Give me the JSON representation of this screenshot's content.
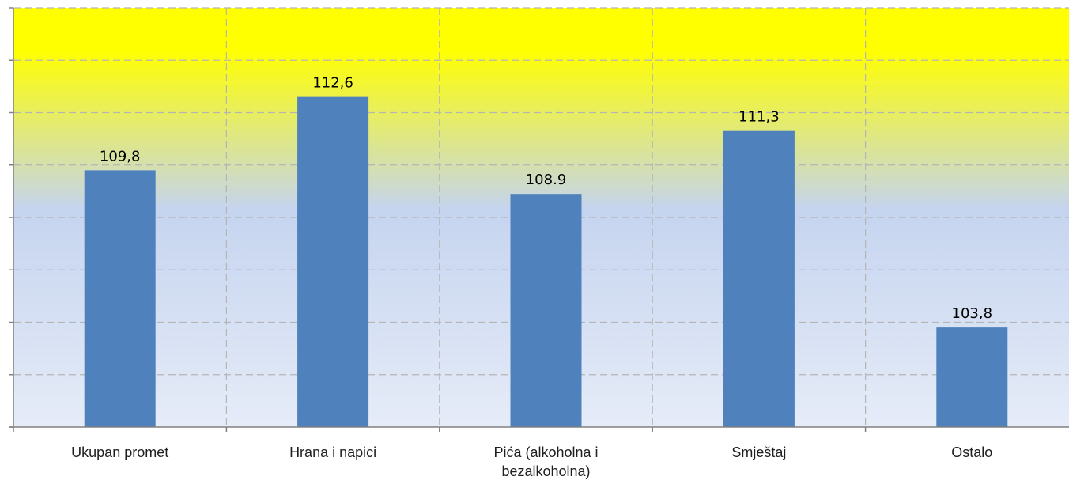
{
  "chart_data": {
    "type": "bar",
    "title": "",
    "xlabel": "",
    "ylabel": "",
    "categories": [
      [
        "Ukupan promet"
      ],
      [
        "Hrana i napici"
      ],
      [
        "Pića (alkoholna i",
        "bezalkoholna)"
      ],
      [
        "Smještaj"
      ],
      [
        "Ostalo"
      ]
    ],
    "values": [
      109.8,
      112.6,
      108.9,
      111.3,
      103.8
    ],
    "value_labels": [
      "109,8",
      "112,6",
      "108.9",
      "111,3",
      "103,8"
    ],
    "ylim": [
      100,
      116
    ],
    "grid": true,
    "legend": "none",
    "colors": {
      "bar": "#4f81bd",
      "grid": "#b5b5b5",
      "axis": "#808080",
      "bg_top": "#ffff00",
      "bg_mid": "#c5d4ef",
      "bg_bottom": "#e6ecf8"
    }
  }
}
